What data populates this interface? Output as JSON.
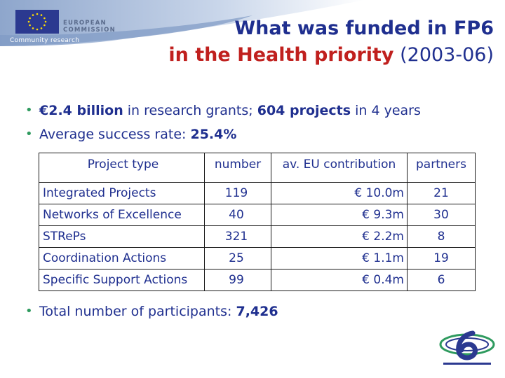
{
  "header": {
    "logo_line1": "EUROPEAN",
    "logo_line2": "COMMISSION",
    "logo_subtitle": "Community research",
    "title_line1": "What was funded in FP6",
    "title_line2_bold": "in the Health priority",
    "title_line2_plain": " (2003-06)"
  },
  "bullets": {
    "b1_bold1": "€2.4 billion",
    "b1_text1": " in research grants; ",
    "b1_bold2": "604 projects",
    "b1_text2": " in 4 years",
    "b2_text": "Average success rate: ",
    "b2_bold": "25.4%",
    "b3_text": "Total number of participants: ",
    "b3_bold": "7,426"
  },
  "table": {
    "headers": [
      "Project type",
      "number",
      "av. EU contribution",
      "partners"
    ],
    "rows": [
      {
        "type": "Integrated Projects",
        "number": "119",
        "contribution": "€ 10.0m",
        "partners": "21"
      },
      {
        "type": "Networks of Excellence",
        "number": "40",
        "contribution": "€ 9.3m",
        "partners": "30"
      },
      {
        "type": "STRePs",
        "number": "321",
        "contribution": "€ 2.2m",
        "partners": "8"
      },
      {
        "type": "Coordination Actions",
        "number": "25",
        "contribution": "€ 1.1m",
        "partners": "19"
      },
      {
        "type": "Specific Support Actions",
        "number": "99",
        "contribution": "€ 0.4m",
        "partners": "6"
      }
    ]
  },
  "colors": {
    "title_blue": "#1f2f8f",
    "title_red": "#c0201e",
    "bullet_green": "#2e9a5e",
    "eu_blue": "#2b3990"
  }
}
